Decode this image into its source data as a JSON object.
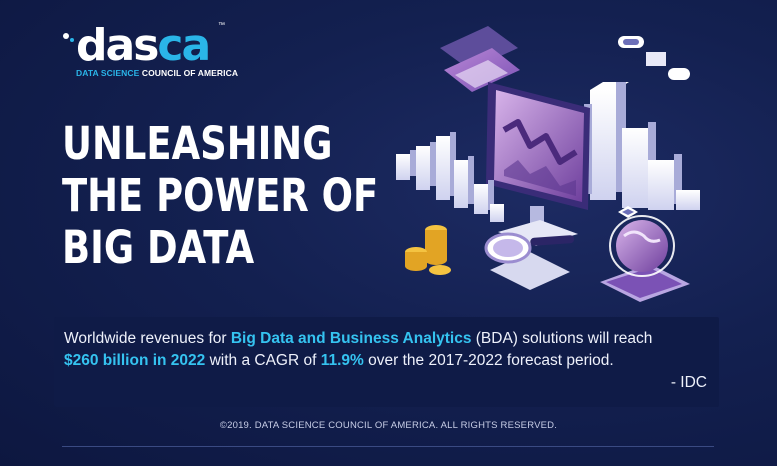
{
  "logo": {
    "wordmark_main": "das",
    "wordmark_accent": "ca",
    "trademark": "™",
    "subtitle_accent": "DATA SCIENCE",
    "subtitle_rest": " COUNCIL OF AMERICA"
  },
  "headline": {
    "line1": "UNLEASHING",
    "line2": "THE POWER OF",
    "line3": "BIG DATA"
  },
  "stat": {
    "part1": "Worldwide revenues for ",
    "highlight1": "Big Data and Business Analytics",
    "part2": " (BDA) solutions will reach",
    "highlight2": "$260 billion in 2022",
    "part3": " with a CAGR of ",
    "highlight3": "11.9%",
    "part4": " over the 2017-2022 forecast period.",
    "source": "- IDC"
  },
  "footer": {
    "copyright": "©2019. DATA SCIENCE COUNCIL OF AMERICA. ALL RIGHTS RESERVED."
  },
  "colors": {
    "background": "#132050",
    "accent": "#35c3f0",
    "panel": "#0f1b47"
  },
  "icons": [
    "monitor-chart-icon",
    "bar-blocks-icon",
    "magnifier-icon",
    "globe-icon",
    "coins-icon",
    "card-icon"
  ]
}
